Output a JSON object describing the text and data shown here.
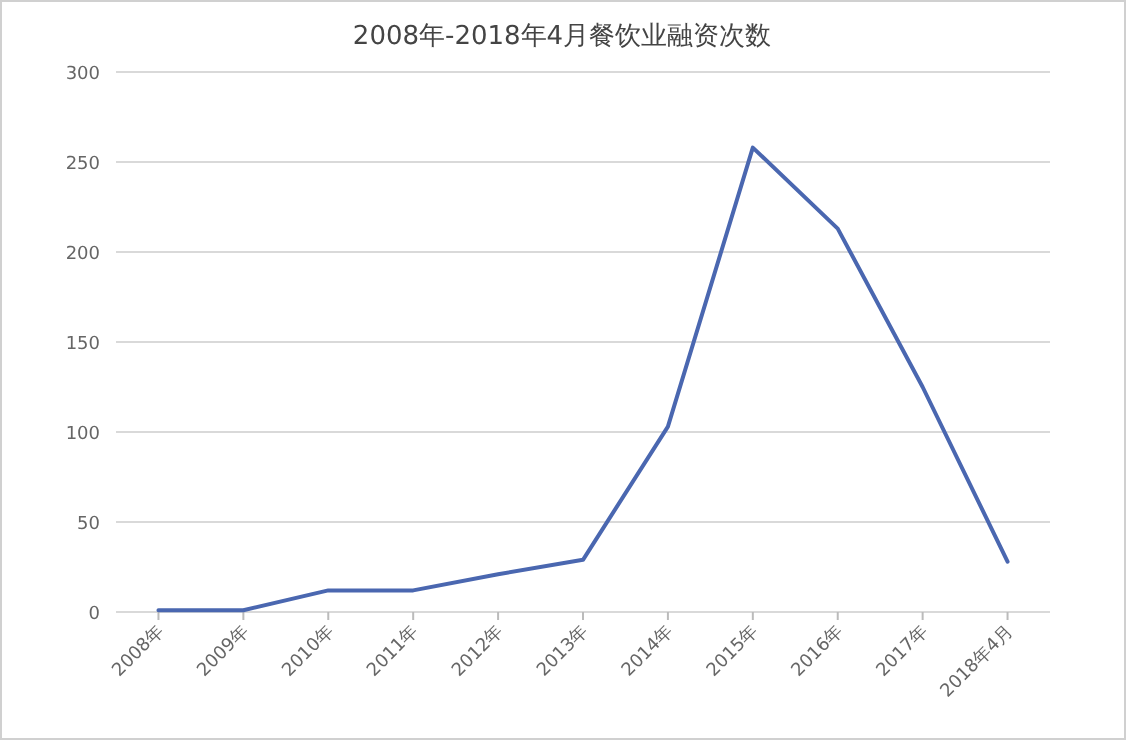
{
  "chart_data": {
    "type": "line",
    "title": "2008年-2018年4月餐饮业融资次数",
    "categories": [
      "2008年",
      "2009年",
      "2010年",
      "2011年",
      "2012年",
      "2013年",
      "2014年",
      "2015年",
      "2016年",
      "2017年",
      "2018年4月"
    ],
    "series": [
      {
        "color": "#4a67b0",
        "values": [
          1,
          1,
          12,
          12,
          21,
          29,
          103,
          258,
          213,
          125,
          28
        ]
      }
    ],
    "ylim": [
      0,
      300
    ],
    "yticks": [
      0,
      50,
      100,
      150,
      200,
      250,
      300
    ],
    "grid": "y",
    "marker": "none",
    "line_style": "solid"
  }
}
